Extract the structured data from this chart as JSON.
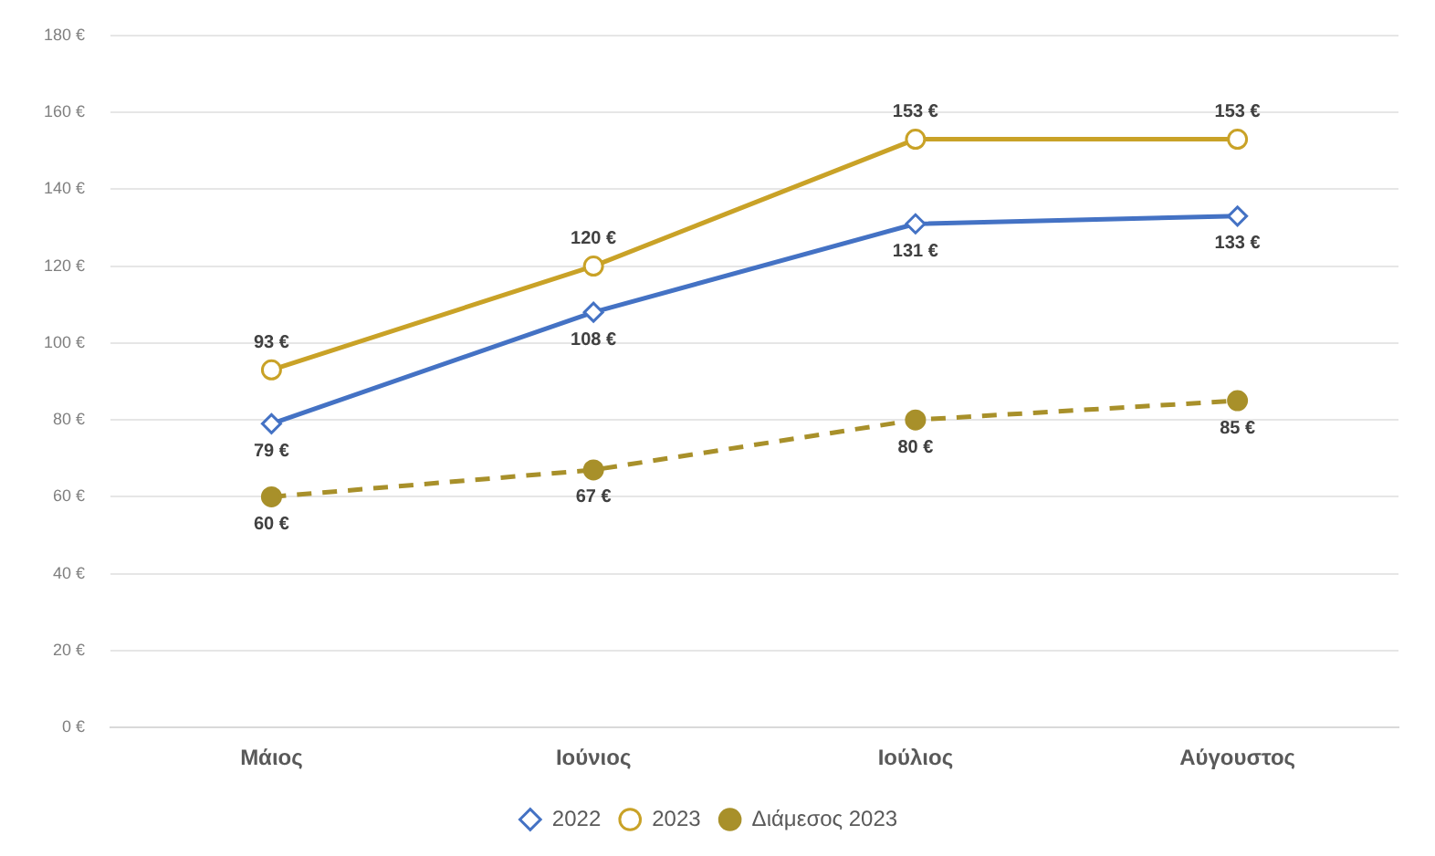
{
  "chart_data": {
    "type": "line",
    "categories": [
      "Μάιος",
      "Ιούνιος",
      "Ιούλιος",
      "Αύγουστος"
    ],
    "series": [
      {
        "name": "2022",
        "color": "#4472c4",
        "values": [
          79,
          108,
          131,
          133
        ],
        "marker": "diamond",
        "line_style": "solid",
        "value_labels": [
          "79 €",
          "108 €",
          "131 €",
          "133 €"
        ]
      },
      {
        "name": "2023",
        "color": "#c9a227",
        "values": [
          93,
          120,
          153,
          153
        ],
        "marker": "circle",
        "line_style": "solid",
        "value_labels": [
          "93 €",
          "120 €",
          "153 €",
          "153 €"
        ]
      },
      {
        "name": "Διάμεσος 2023",
        "color": "#a8902a",
        "values": [
          60,
          67,
          80,
          85
        ],
        "marker": "circle",
        "line_style": "dashed",
        "value_labels": [
          "60 €",
          "67 €",
          "80 €",
          "85 €"
        ]
      }
    ],
    "ylim": [
      0,
      180
    ],
    "yticks": [
      {
        "value": 0,
        "label": "0 €"
      },
      {
        "value": 20,
        "label": "20 €"
      },
      {
        "value": 40,
        "label": "40 €"
      },
      {
        "value": 60,
        "label": "60 €"
      },
      {
        "value": 80,
        "label": "80 €"
      },
      {
        "value": 100,
        "label": "100 €"
      },
      {
        "value": 120,
        "label": "120 €"
      },
      {
        "value": 140,
        "label": "140 €"
      },
      {
        "value": 160,
        "label": "160 €"
      },
      {
        "value": 180,
        "label": "180 €"
      }
    ],
    "grid": "y",
    "legend": "bottom"
  }
}
